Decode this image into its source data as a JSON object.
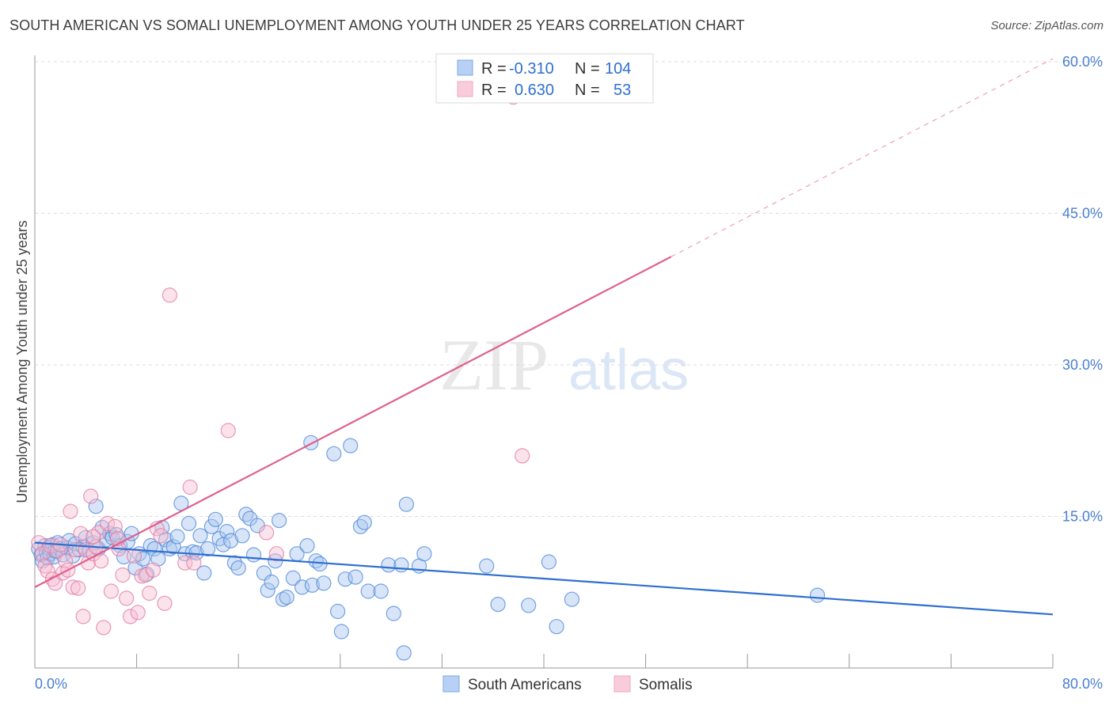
{
  "header": {
    "title": "SOUTH AMERICAN VS SOMALI UNEMPLOYMENT AMONG YOUTH UNDER 25 YEARS CORRELATION CHART",
    "source": "Source: ZipAtlas.com"
  },
  "watermark": {
    "zip": "ZIP",
    "atlas": "atlas"
  },
  "stats_legend": {
    "rows": [
      {
        "r_label": "R =",
        "r_value": "-0.310",
        "n_label": "N =",
        "n_value": "104",
        "color": "#7aa8e8"
      },
      {
        "r_label": "R =",
        "r_value": "0.630",
        "n_label": "N =",
        "n_value": "53",
        "color": "#f4a6c0"
      }
    ]
  },
  "chart_data": {
    "type": "scatter",
    "title": "SOUTH AMERICAN VS SOMALI UNEMPLOYMENT AMONG YOUTH UNDER 25 YEARS CORRELATION CHART",
    "xlabel": "",
    "ylabel": "Unemployment Among Youth under 25 years",
    "xlim": [
      0,
      80
    ],
    "ylim": [
      0,
      60
    ],
    "x_tick_labels": [
      "0.0%",
      "80.0%"
    ],
    "y_ticks": [
      15,
      30,
      45,
      60
    ],
    "y_tick_labels": [
      "15.0%",
      "30.0%",
      "45.0%",
      "60.0%"
    ],
    "grid": true,
    "legend_position": "bottom",
    "series": [
      {
        "name": "South Americans",
        "color": "#4a86d8",
        "fill": "#a9c6f0",
        "trend": {
          "x0": 0,
          "y0": 12.4,
          "x1": 80,
          "y1": 5.3
        },
        "points": [
          [
            0.3,
            11.8
          ],
          [
            0.5,
            11.2
          ],
          [
            0.6,
            10.6
          ],
          [
            0.8,
            12.1
          ],
          [
            0.9,
            11.5
          ],
          [
            1.0,
            10.9
          ],
          [
            1.1,
            11.9
          ],
          [
            1.2,
            11.3
          ],
          [
            1.4,
            12.2
          ],
          [
            1.5,
            11.0
          ],
          [
            1.6,
            11.6
          ],
          [
            1.8,
            12.4
          ],
          [
            2.0,
            11.8
          ],
          [
            2.2,
            11.2
          ],
          [
            2.5,
            11.9
          ],
          [
            2.7,
            12.6
          ],
          [
            3.0,
            11.1
          ],
          [
            3.2,
            12.3
          ],
          [
            3.5,
            11.7
          ],
          [
            3.8,
            12.0
          ],
          [
            4.0,
            12.9
          ],
          [
            4.3,
            11.6
          ],
          [
            4.6,
            12.4
          ],
          [
            4.8,
            16.0
          ],
          [
            5.0,
            11.8
          ],
          [
            5.3,
            13.9
          ],
          [
            5.6,
            12.7
          ],
          [
            5.9,
            13.3
          ],
          [
            6.1,
            12.9
          ],
          [
            6.4,
            13.2
          ],
          [
            6.7,
            12.1
          ],
          [
            7.0,
            11.0
          ],
          [
            7.3,
            12.5
          ],
          [
            7.6,
            13.3
          ],
          [
            7.9,
            9.9
          ],
          [
            8.2,
            11.3
          ],
          [
            8.5,
            10.8
          ],
          [
            8.8,
            9.3
          ],
          [
            9.1,
            12.1
          ],
          [
            9.4,
            11.8
          ],
          [
            9.7,
            10.8
          ],
          [
            10.0,
            13.9
          ],
          [
            10.3,
            12.7
          ],
          [
            10.6,
            11.8
          ],
          [
            10.9,
            12.0
          ],
          [
            11.2,
            13.0
          ],
          [
            11.5,
            16.3
          ],
          [
            11.8,
            11.3
          ],
          [
            12.1,
            14.3
          ],
          [
            12.4,
            11.5
          ],
          [
            12.7,
            11.4
          ],
          [
            13.0,
            13.1
          ],
          [
            13.3,
            9.4
          ],
          [
            13.6,
            11.8
          ],
          [
            13.9,
            14.0
          ],
          [
            14.2,
            14.7
          ],
          [
            14.5,
            12.8
          ],
          [
            14.8,
            12.2
          ],
          [
            15.1,
            13.5
          ],
          [
            15.4,
            12.6
          ],
          [
            15.7,
            10.4
          ],
          [
            16.0,
            9.9
          ],
          [
            16.3,
            13.1
          ],
          [
            16.6,
            15.2
          ],
          [
            16.9,
            14.8
          ],
          [
            17.2,
            11.2
          ],
          [
            17.5,
            14.1
          ],
          [
            18.0,
            9.4
          ],
          [
            18.3,
            7.7
          ],
          [
            18.6,
            8.5
          ],
          [
            18.9,
            10.6
          ],
          [
            19.2,
            14.6
          ],
          [
            19.5,
            6.8
          ],
          [
            19.8,
            7.0
          ],
          [
            20.3,
            8.9
          ],
          [
            20.6,
            11.3
          ],
          [
            21.0,
            8.0
          ],
          [
            21.4,
            12.1
          ],
          [
            21.8,
            8.2
          ],
          [
            22.1,
            10.6
          ],
          [
            22.4,
            10.3
          ],
          [
            22.7,
            8.4
          ],
          [
            23.5,
            21.2
          ],
          [
            23.8,
            5.6
          ],
          [
            24.1,
            3.6
          ],
          [
            24.4,
            8.8
          ],
          [
            24.8,
            22.0
          ],
          [
            25.2,
            9.0
          ],
          [
            25.6,
            14.0
          ],
          [
            25.9,
            14.4
          ],
          [
            26.2,
            7.6
          ],
          [
            27.2,
            7.6
          ],
          [
            27.8,
            10.2
          ],
          [
            28.2,
            5.4
          ],
          [
            28.8,
            10.2
          ],
          [
            29.2,
            16.2
          ],
          [
            30.2,
            10.1
          ],
          [
            30.6,
            11.3
          ],
          [
            35.5,
            10.1
          ],
          [
            36.4,
            6.3
          ],
          [
            38.8,
            6.2
          ],
          [
            40.4,
            10.5
          ],
          [
            41.0,
            4.1
          ],
          [
            42.2,
            6.8
          ],
          [
            61.5,
            7.2
          ],
          [
            21.7,
            22.3
          ],
          [
            29.0,
            1.5
          ]
        ]
      },
      {
        "name": "Somalis",
        "color": "#e07aa0",
        "fill": "#f6bfd2",
        "trend": {
          "x0": 0,
          "y0": 8.0,
          "x1": 50,
          "y1": 40.7,
          "x2": 80,
          "y2": 60.3
        },
        "points": [
          [
            0.3,
            12.4
          ],
          [
            0.6,
            11.3
          ],
          [
            0.8,
            10.1
          ],
          [
            1.0,
            9.6
          ],
          [
            1.2,
            12.1
          ],
          [
            1.4,
            8.8
          ],
          [
            1.6,
            8.4
          ],
          [
            1.8,
            11.6
          ],
          [
            2.0,
            12.2
          ],
          [
            2.2,
            9.4
          ],
          [
            2.4,
            10.6
          ],
          [
            2.6,
            9.7
          ],
          [
            2.8,
            15.5
          ],
          [
            3.0,
            8.0
          ],
          [
            3.2,
            11.7
          ],
          [
            3.4,
            7.9
          ],
          [
            3.6,
            13.3
          ],
          [
            3.8,
            5.1
          ],
          [
            4.0,
            11.7
          ],
          [
            4.2,
            10.4
          ],
          [
            4.4,
            17.0
          ],
          [
            4.6,
            11.3
          ],
          [
            4.8,
            12.0
          ],
          [
            5.0,
            13.4
          ],
          [
            5.2,
            10.6
          ],
          [
            5.4,
            4.0
          ],
          [
            5.7,
            14.3
          ],
          [
            6.0,
            7.6
          ],
          [
            6.3,
            14.0
          ],
          [
            6.6,
            11.8
          ],
          [
            6.9,
            9.2
          ],
          [
            7.2,
            6.9
          ],
          [
            7.5,
            5.1
          ],
          [
            7.8,
            11.1
          ],
          [
            8.1,
            5.5
          ],
          [
            8.4,
            9.1
          ],
          [
            8.7,
            9.2
          ],
          [
            9.0,
            7.4
          ],
          [
            9.3,
            9.7
          ],
          [
            9.6,
            13.8
          ],
          [
            9.9,
            13.1
          ],
          [
            10.2,
            6.4
          ],
          [
            10.6,
            36.9
          ],
          [
            11.8,
            10.4
          ],
          [
            12.2,
            17.9
          ],
          [
            12.5,
            10.4
          ],
          [
            15.2,
            23.5
          ],
          [
            18.2,
            13.4
          ],
          [
            19.0,
            11.3
          ],
          [
            38.3,
            21.0
          ],
          [
            37.6,
            56.5
          ],
          [
            6.5,
            12.8
          ],
          [
            4.6,
            13.0
          ]
        ]
      }
    ]
  }
}
